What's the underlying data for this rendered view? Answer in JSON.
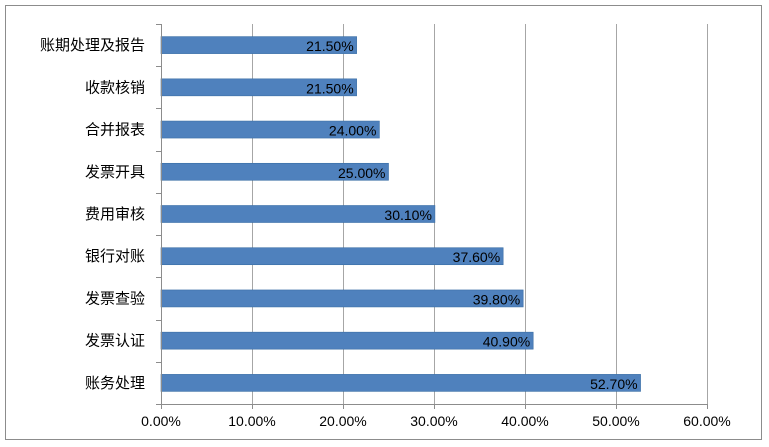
{
  "chart_data": {
    "type": "bar",
    "orientation": "horizontal",
    "categories": [
      "账期处理及报告",
      "收款核销",
      "合并报表",
      "发票开具",
      "费用审核",
      "银行对账",
      "发票查验",
      "发票认证",
      "账务处理"
    ],
    "values": [
      21.5,
      21.5,
      24.0,
      25.0,
      30.1,
      37.6,
      39.8,
      40.9,
      52.7
    ],
    "data_labels": [
      "21.50%",
      "21.50%",
      "24.00%",
      "25.00%",
      "30.10%",
      "37.60%",
      "39.80%",
      "40.90%",
      "52.70%"
    ],
    "x_ticks": [
      0,
      10,
      20,
      30,
      40,
      50,
      60
    ],
    "x_tick_labels": [
      "0.00%",
      "10.00%",
      "20.00%",
      "30.00%",
      "40.00%",
      "50.00%",
      "60.00%"
    ],
    "xlim": [
      0,
      60
    ],
    "grid": "vertical",
    "legend": "none",
    "title": "",
    "xlabel": "",
    "ylabel": "",
    "colors": {
      "bar": "#4f81bd",
      "bar_border": "#3a6ea5",
      "grid": "#a6a6a6",
      "axis": "#8c8c8c",
      "frame": "#8c8c8c"
    }
  }
}
